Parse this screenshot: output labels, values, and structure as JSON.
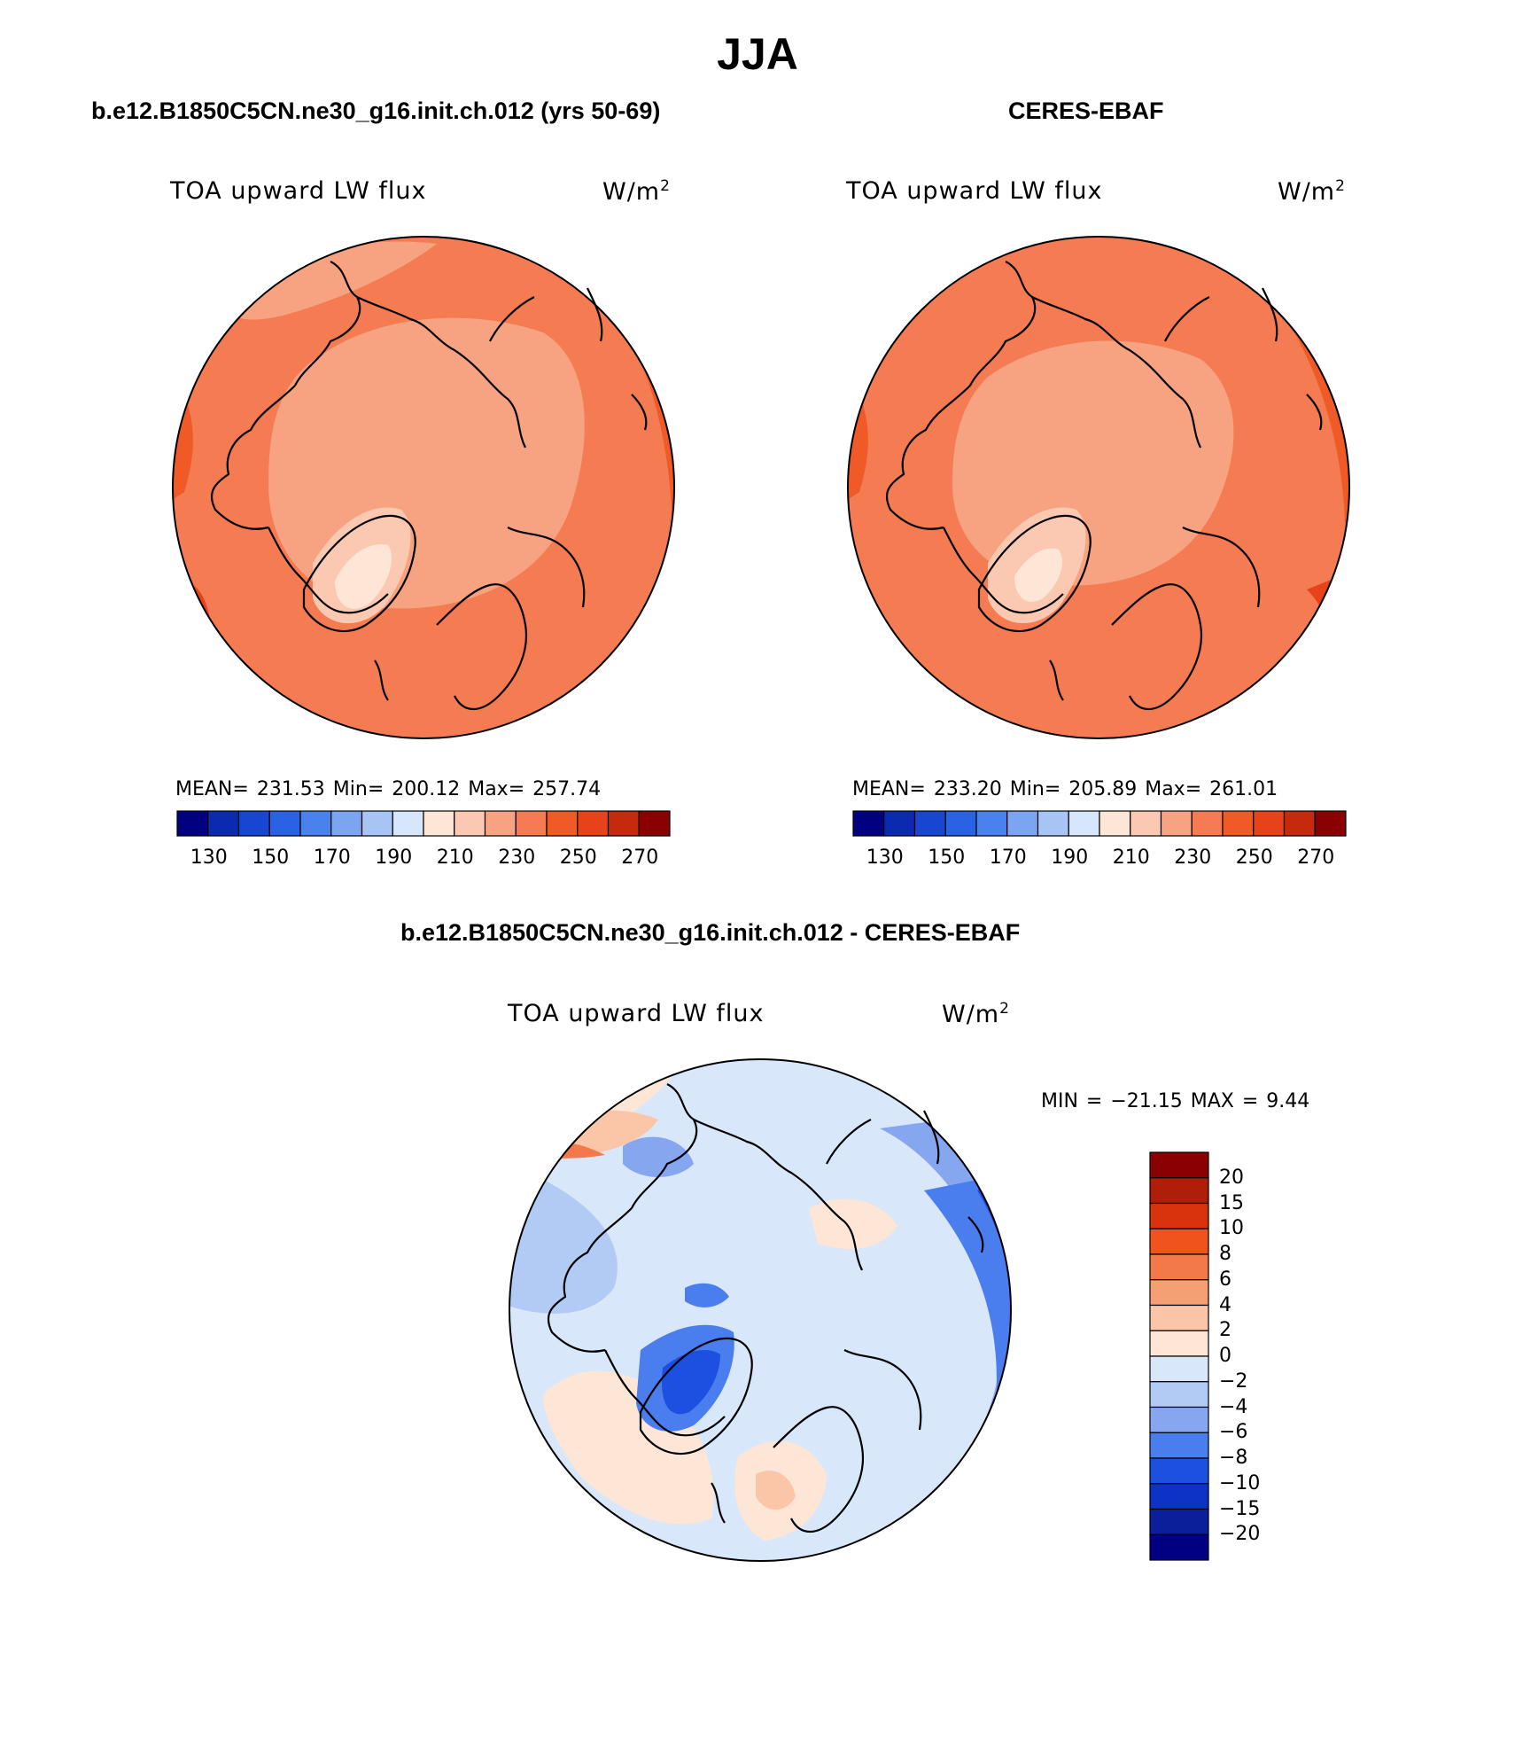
{
  "title": "JJA",
  "panels": {
    "model": {
      "case_name": "b.e12.B1850C5CN.ne30_g16.init.ch.012 (yrs 50-69)",
      "variable": "TOA upward LW flux",
      "units": "W/m",
      "units_exponent": "2",
      "stats_text": "MEAN= 231.53   Min= 200.12   Max= 257.74"
    },
    "obs": {
      "case_name": "CERES-EBAF",
      "variable": "TOA upward LW flux",
      "units": "W/m",
      "units_exponent": "2",
      "stats_text": "MEAN= 233.20   Min= 205.89   Max= 261.01"
    },
    "diff": {
      "case_name": "b.e12.B1850C5CN.ne30_g16.init.ch.012 - CERES-EBAF",
      "variable": "TOA upward LW flux",
      "units": "W/m",
      "units_exponent": "2",
      "stats_text": "MIN = −21.15 MAX =    9.44"
    }
  },
  "colorbars": {
    "absolute": {
      "colors": [
        "#000080",
        "#0a2bb0",
        "#1747d1",
        "#2a62e6",
        "#4a82ed",
        "#7ba5f1",
        "#a8c4f5",
        "#d6e6fb",
        "#fde6d6",
        "#fbc8b2",
        "#f7a281",
        "#f47b52",
        "#f05a27",
        "#e8421a",
        "#c52a0e",
        "#8b0000"
      ],
      "tick_labels": [
        "130",
        "150",
        "170",
        "190",
        "210",
        "230",
        "250",
        "270"
      ]
    },
    "difference": {
      "colors": [
        "#000080",
        "#0b1f9a",
        "#0c33c6",
        "#1d4fe0",
        "#4a7ded",
        "#86a6f0",
        "#b1cbf5",
        "#d9e7fb",
        "#fde6d6",
        "#fbc6a8",
        "#f79f74",
        "#f3784a",
        "#f0541c",
        "#d9330e",
        "#b01d08",
        "#8b0000"
      ],
      "tick_labels": [
        "20",
        "15",
        "10",
        "8",
        "6",
        "4",
        "2",
        "0",
        "−2",
        "−4",
        "−6",
        "−8",
        "−10",
        "−15",
        "−20"
      ]
    }
  },
  "map_colors": {
    "model": {
      "base": "#f47b52",
      "light": "#f7a281",
      "lighter": "#fbc8b2",
      "lightest": "#fde6d6",
      "dark": "#f05a27",
      "darker": "#e8421a"
    },
    "obs": {
      "base": "#f47b52",
      "light": "#f7a281",
      "lighter": "#fbc8b2",
      "lightest": "#fde6d6",
      "dark": "#f05a27",
      "darker": "#e8421a"
    },
    "diff": {
      "base": "#d9e7fb",
      "pos1": "#fde6d6",
      "pos2": "#fbc6a8",
      "pos3": "#f3784a",
      "neg1": "#b1cbf5",
      "neg2": "#86a6f0",
      "neg3": "#4a7ded",
      "neg4": "#1d4fe0",
      "neg5": "#0c33c6"
    }
  },
  "icons": [
    "coastline-outline"
  ]
}
